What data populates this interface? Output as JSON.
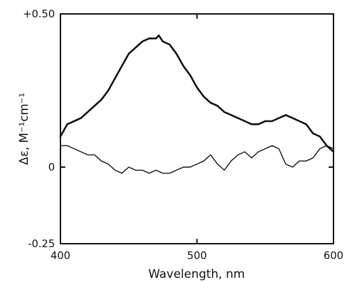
{
  "chart_data": {
    "type": "line",
    "xlabel": "Wavelength, nm",
    "ylabel": "Δε, M⁻¹cm⁻¹",
    "xlim": [
      400,
      600
    ],
    "ylim": [
      -0.25,
      0.5
    ],
    "x_ticks": [
      400,
      500,
      600
    ],
    "x_tick_labels": [
      "400",
      "500",
      "600"
    ],
    "y_ticks": [
      -0.25,
      0,
      0.5
    ],
    "y_tick_labels": [
      "-0.25",
      "0",
      "+0.50"
    ],
    "grid": false,
    "legend": "none",
    "series": [
      {
        "line_weight": "thick",
        "color": "#111111",
        "x": [
          400,
          405,
          410,
          415,
          420,
          425,
          430,
          435,
          440,
          445,
          450,
          455,
          460,
          465,
          470,
          472,
          475,
          480,
          485,
          490,
          495,
          500,
          505,
          510,
          515,
          520,
          525,
          530,
          535,
          540,
          545,
          550,
          555,
          560,
          565,
          570,
          575,
          580,
          585,
          590,
          595,
          600
        ],
        "y": [
          0.1,
          0.14,
          0.15,
          0.16,
          0.18,
          0.2,
          0.22,
          0.25,
          0.29,
          0.33,
          0.37,
          0.39,
          0.41,
          0.42,
          0.42,
          0.43,
          0.41,
          0.4,
          0.37,
          0.33,
          0.3,
          0.26,
          0.23,
          0.21,
          0.2,
          0.18,
          0.17,
          0.16,
          0.15,
          0.14,
          0.14,
          0.15,
          0.15,
          0.16,
          0.17,
          0.16,
          0.15,
          0.14,
          0.11,
          0.1,
          0.07,
          0.05
        ]
      },
      {
        "line_weight": "thin",
        "color": "#111111",
        "x": [
          400,
          405,
          410,
          415,
          420,
          425,
          430,
          435,
          440,
          445,
          450,
          455,
          460,
          465,
          470,
          475,
          480,
          485,
          490,
          495,
          500,
          505,
          510,
          515,
          520,
          525,
          530,
          535,
          540,
          545,
          550,
          555,
          560,
          565,
          570,
          575,
          580,
          585,
          590,
          595,
          600
        ],
        "y": [
          0.07,
          0.07,
          0.06,
          0.05,
          0.04,
          0.04,
          0.02,
          0.01,
          -0.01,
          -0.02,
          0.0,
          -0.01,
          -0.01,
          -0.02,
          -0.01,
          -0.02,
          -0.02,
          -0.01,
          0.0,
          0.0,
          0.01,
          0.02,
          0.04,
          0.01,
          -0.01,
          0.02,
          0.04,
          0.05,
          0.03,
          0.05,
          0.06,
          0.07,
          0.06,
          0.01,
          0.0,
          0.02,
          0.02,
          0.03,
          0.06,
          0.07,
          0.06
        ]
      }
    ]
  }
}
